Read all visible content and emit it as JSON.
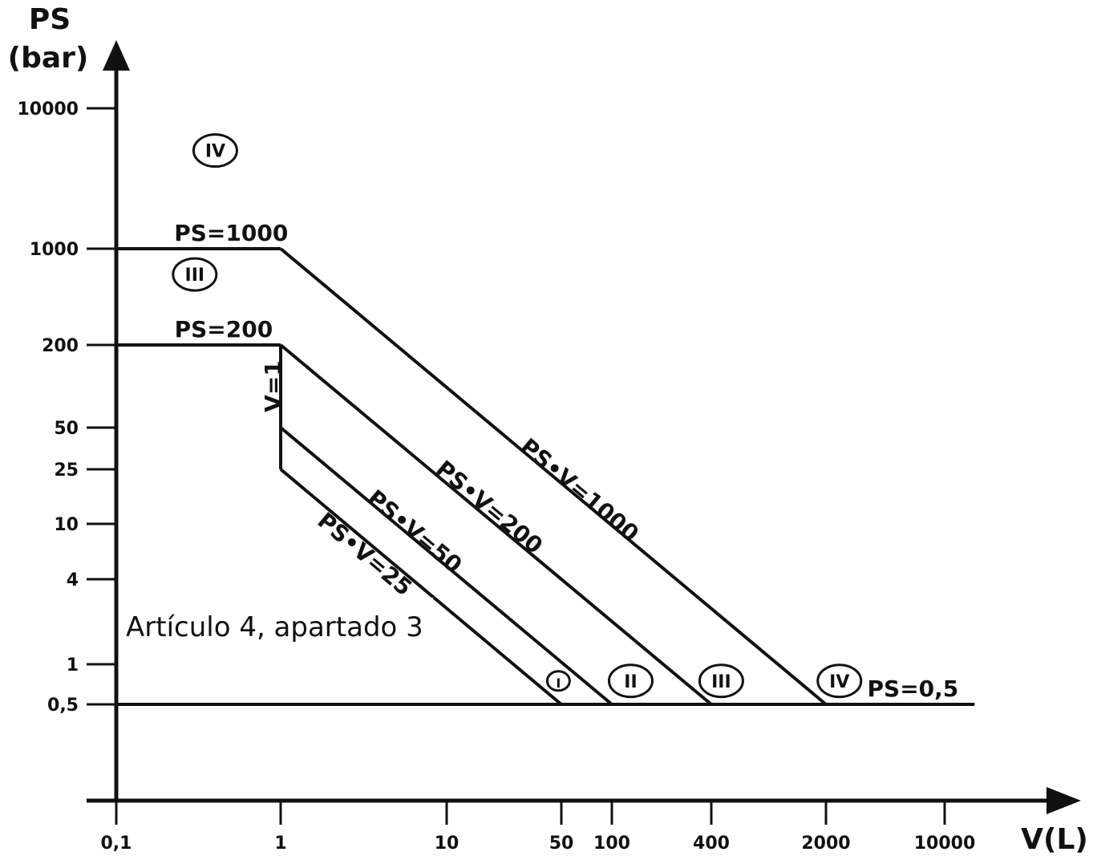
{
  "chart_data": {
    "type": "line",
    "title": "",
    "xlabel": "V(L)",
    "ylabel": "PS (bar)",
    "ylabel_lines": [
      "PS",
      "(bar)"
    ],
    "x_scale": "log",
    "y_scale": "log",
    "xlim": [
      0.1,
      20000
    ],
    "ylim": [
      0.1,
      20000
    ],
    "x_ticks": [
      {
        "value": 0.1,
        "label": "0,1"
      },
      {
        "value": 1,
        "label": "1"
      },
      {
        "value": 10,
        "label": "10"
      },
      {
        "value": 50,
        "label": "50"
      },
      {
        "value": 100,
        "label": "100"
      },
      {
        "value": 400,
        "label": "400"
      },
      {
        "value": 2000,
        "label": "2000"
      },
      {
        "value": 10000,
        "label": "10000"
      }
    ],
    "y_ticks": [
      {
        "value": 10000,
        "label": "10000"
      },
      {
        "value": 1000,
        "label": "1000"
      },
      {
        "value": 200,
        "label": "200"
      },
      {
        "value": 50,
        "label": "50"
      },
      {
        "value": 25,
        "label": "25"
      },
      {
        "value": 10,
        "label": "10"
      },
      {
        "value": 4,
        "label": "4"
      },
      {
        "value": 1,
        "label": "1"
      },
      {
        "value": 0.5,
        "label": "0,5"
      }
    ],
    "series": [
      {
        "name": "PS=1000",
        "points": [
          [
            0.1,
            1000
          ],
          [
            1,
            1000
          ]
        ]
      },
      {
        "name": "PS=200",
        "points": [
          [
            0.1,
            200
          ],
          [
            1,
            200
          ]
        ]
      },
      {
        "name": "V=1",
        "points": [
          [
            1,
            200
          ],
          [
            1,
            25
          ]
        ]
      },
      {
        "name": "PS•V=1000",
        "points": [
          [
            1,
            1000
          ],
          [
            2000,
            0.5
          ]
        ]
      },
      {
        "name": "PS•V=200",
        "points": [
          [
            1,
            200
          ],
          [
            400,
            0.5
          ]
        ]
      },
      {
        "name": "PS•V=50",
        "points": [
          [
            1,
            50
          ],
          [
            100,
            0.5
          ]
        ]
      },
      {
        "name": "PS•V=25",
        "points": [
          [
            1,
            25
          ],
          [
            50,
            0.5
          ]
        ]
      },
      {
        "name": "PS=0,5",
        "points": [
          [
            0.1,
            0.5
          ],
          [
            15000,
            0.5
          ]
        ]
      }
    ],
    "annotations": [
      {
        "text": "PS=1000",
        "x": 0.5,
        "y": 1000,
        "rotation": 0
      },
      {
        "text": "PS=200",
        "x": 0.45,
        "y": 200,
        "rotation": 0
      },
      {
        "text": "V=1",
        "x": 1,
        "y": 100,
        "rotation": -90
      },
      {
        "text": "PS•V=1000",
        "x": 60,
        "y": 16,
        "rotation": 40
      },
      {
        "text": "PS•V=200",
        "x": 17,
        "y": 12,
        "rotation": 40
      },
      {
        "text": "PS•V=50",
        "x": 6,
        "y": 8,
        "rotation": 40
      },
      {
        "text": "PS•V=25",
        "x": 3,
        "y": 5.5,
        "rotation": 40
      },
      {
        "text": "PS=0,5",
        "x": 6500,
        "y": 0.5,
        "rotation": 0
      }
    ],
    "regions": [
      {
        "label": "IV",
        "x": 0.4,
        "y": 5000
      },
      {
        "label": "III",
        "x": 0.3,
        "y": 650
      },
      {
        "label": "I",
        "x": 48,
        "y": 0.75
      },
      {
        "label": "II",
        "x": 130,
        "y": 0.75
      },
      {
        "label": "III",
        "x": 460,
        "y": 0.75
      },
      {
        "label": "IV",
        "x": 2400,
        "y": 0.75
      }
    ],
    "note": "Artículo 4, apartado 3",
    "grid": false
  }
}
